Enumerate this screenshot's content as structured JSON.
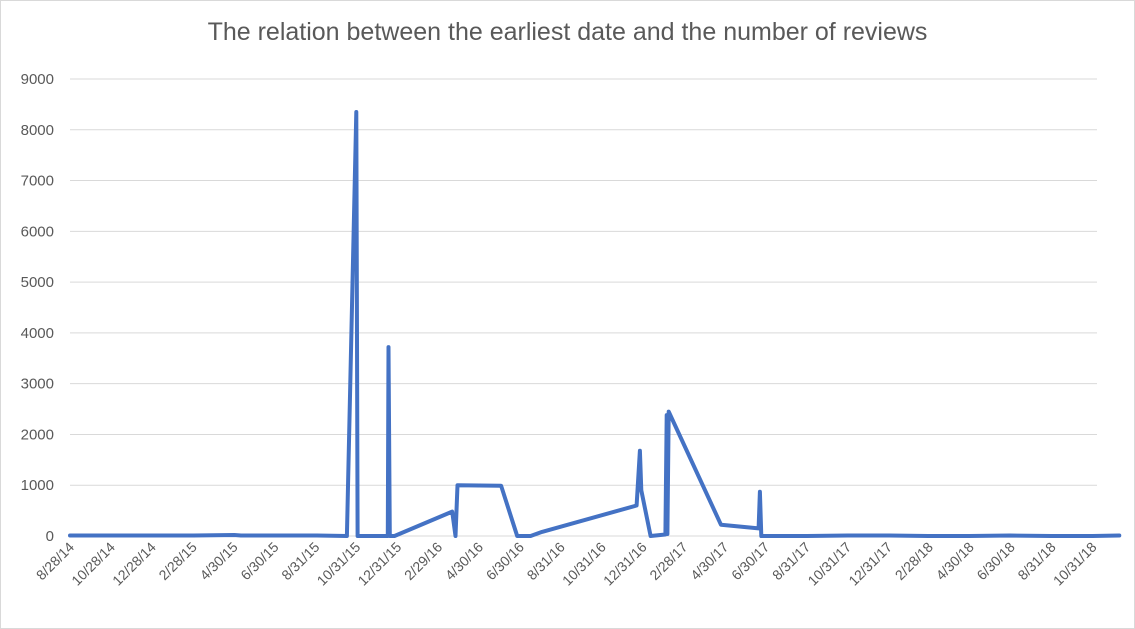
{
  "chart_data": {
    "type": "line",
    "title": "The relation between the earliest date and the number of reviews",
    "xlabel": "",
    "ylabel": "",
    "ylim": [
      0,
      9000
    ],
    "y_ticks": [
      "0",
      "1000",
      "2000",
      "3000",
      "4000",
      "5000",
      "6000",
      "7000",
      "8000",
      "9000"
    ],
    "x_ticks": [
      "8/28/14",
      "10/28/14",
      "12/28/14",
      "2/28/15",
      "4/30/15",
      "6/30/15",
      "8/31/15",
      "10/31/15",
      "12/31/15",
      "2/29/16",
      "4/30/16",
      "6/30/16",
      "8/31/16",
      "10/31/16",
      "12/31/16",
      "2/28/17",
      "4/30/17",
      "6/30/17",
      "8/31/17",
      "10/31/17",
      "12/31/17",
      "2/28/18",
      "4/30/18",
      "6/30/18",
      "8/31/18",
      "10/31/18"
    ],
    "grid": true,
    "legend": "none",
    "color": "#4472C4",
    "series": [
      {
        "x": [
          "8/28/14",
          "10/28/14",
          "12/28/14",
          "2/28/15",
          "4/30/15",
          "5/10/15",
          "6/30/15",
          "8/31/15",
          "10/15/15",
          "10/29/15",
          "10/31/15",
          "11/2/15",
          "12/15/15",
          "12/16/15",
          "12/18/15",
          "12/25/15",
          "3/20/16",
          "3/25/16",
          "3/28/16",
          "6/1/16",
          "6/25/16",
          "7/15/16",
          "8/1/16",
          "12/20/16",
          "12/25/16",
          "12/27/16",
          "1/10/17",
          "2/1/17",
          "2/3/17",
          "2/4/17",
          "2/6/17",
          "4/25/17",
          "6/20/17",
          "6/22/17",
          "6/24/17",
          "7/10/17",
          "8/31/17",
          "10/31/17",
          "12/31/17",
          "2/28/18",
          "4/30/18",
          "6/30/18",
          "8/31/18",
          "10/31/18",
          "12/10/18"
        ],
        "y": [
          10,
          10,
          10,
          10,
          20,
          10,
          10,
          10,
          0,
          8350,
          0,
          0,
          0,
          3720,
          0,
          0,
          480,
          0,
          1000,
          990,
          0,
          0,
          80,
          600,
          1680,
          900,
          0,
          30,
          2380,
          40,
          2450,
          220,
          150,
          870,
          0,
          0,
          0,
          10,
          10,
          0,
          0,
          10,
          0,
          0,
          10
        ]
      }
    ]
  }
}
